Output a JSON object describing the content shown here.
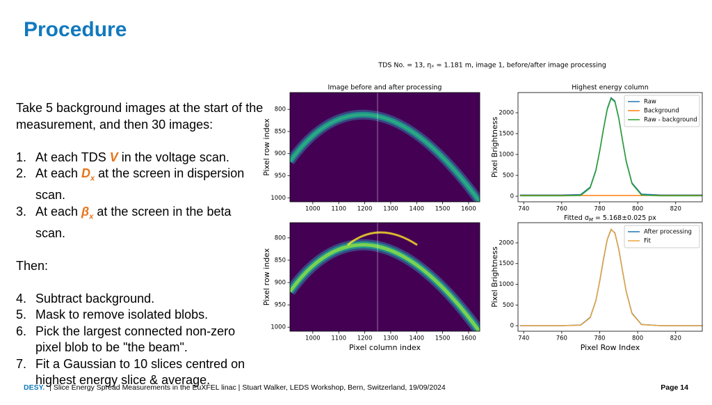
{
  "header": {
    "title": "Procedure"
  },
  "body": {
    "intro": "Take 5 background images at the start of the measurement, and then 30 images:",
    "steps": [
      {
        "number": "1.",
        "before": "At each TDS ",
        "symbol": "V",
        "after": " in the voltage scan."
      },
      {
        "number": "2.",
        "before": "At each ",
        "symbol": "D",
        "sub": "x",
        "after": " at the screen in dispersion scan."
      },
      {
        "number": "3.",
        "before": "At each ",
        "symbol": "β",
        "sub": "x",
        "after": " at the screen in the beta scan."
      }
    ],
    "then": "Then:",
    "steps2": [
      {
        "number": "4.",
        "text": "Subtract background."
      },
      {
        "number": "5.",
        "text": "Mask to remove isolated blobs."
      },
      {
        "number": "6.",
        "text": "Pick the largest connected non-zero pixel blob to be \"the beam\"."
      },
      {
        "number": "7.",
        "text": "Fit a Gaussian to 10 slices centred on highest energy slice & average."
      }
    ]
  },
  "figure": {
    "suptitle": "TDS No. = 13, ηₓ = 1.181 m, image 1, before/after image processing"
  },
  "chart_data": [
    {
      "type": "heatmap",
      "title": "Image before and after processing",
      "ylabel": "Pixel row index",
      "xlim": [
        912,
        1643
      ],
      "ylim": [
        1009,
        762
      ],
      "xticks": [
        1000,
        1100,
        1200,
        1300,
        1400,
        1500,
        1600
      ],
      "yticks": [
        800,
        850,
        900,
        950,
        1000
      ]
    },
    {
      "type": "line",
      "title": "Highest energy column",
      "ylabel": "Pixel Brightness",
      "xlim": [
        737,
        834
      ],
      "ylim": [
        -133,
        2483
      ],
      "xticks": [
        740,
        760,
        780,
        800,
        820
      ],
      "yticks": [
        0,
        500,
        1000,
        1500,
        2000
      ],
      "legend": "upper right",
      "x": [
        738,
        760,
        770,
        775,
        778,
        780,
        782,
        784,
        786,
        788,
        790,
        792,
        794,
        797,
        802,
        812,
        834
      ],
      "series": [
        {
          "name": "Raw",
          "color": "#1f77b4",
          "values": [
            30,
            30,
            40,
            220,
            630,
            1090,
            1620,
            2100,
            2360,
            2280,
            1890,
            1350,
            840,
            320,
            50,
            30,
            30
          ]
        },
        {
          "name": "Background",
          "color": "#ff7f0e",
          "values": [
            20,
            20,
            20,
            20,
            20,
            20,
            20,
            20,
            20,
            20,
            20,
            20,
            20,
            20,
            20,
            20,
            20
          ]
        },
        {
          "name": "Raw - background",
          "color": "#2ca02c",
          "values": [
            10,
            10,
            20,
            200,
            610,
            1070,
            1600,
            2080,
            2340,
            2260,
            1870,
            1330,
            820,
            300,
            30,
            10,
            10
          ]
        }
      ]
    },
    {
      "type": "heatmap",
      "xlabel": "Pixel column index",
      "ylabel": "Pixel row index",
      "xlim": [
        912,
        1643
      ],
      "ylim": [
        1009,
        766
      ],
      "xticks": [
        1000,
        1100,
        1200,
        1300,
        1400,
        1500,
        1600
      ],
      "yticks": [
        800,
        850,
        900,
        950,
        1000
      ]
    },
    {
      "type": "line",
      "title": {
        "prefix": "Fitted σ",
        "sub": "M",
        "suffix": " = 5.168±0.025 px"
      },
      "xlabel": "Pixel Row Index",
      "ylabel": "Pixel Brightness",
      "xlim": [
        737,
        834
      ],
      "ylim": [
        -134,
        2487
      ],
      "xticks": [
        740,
        760,
        780,
        800,
        820
      ],
      "yticks": [
        0,
        500,
        1000,
        1500,
        2000
      ],
      "legend": "upper right",
      "x": [
        738,
        760,
        770,
        775,
        778,
        780,
        782,
        784,
        786,
        788,
        790,
        792,
        794,
        797,
        802,
        812,
        834
      ],
      "series": [
        {
          "name": "After processing",
          "color": "#1f77b4",
          "values": [
            0,
            0,
            15,
            200,
            610,
            1070,
            1600,
            2080,
            2320,
            2240,
            1860,
            1330,
            820,
            300,
            30,
            0,
            0
          ]
        },
        {
          "name": "Fit",
          "color": "#e8a33d",
          "values": [
            0,
            0,
            10,
            190,
            600,
            1080,
            1620,
            2090,
            2330,
            2230,
            1850,
            1320,
            810,
            290,
            25,
            0,
            0
          ]
        }
      ]
    }
  ],
  "footer": {
    "brand": "DESY.",
    "text": "| Slice Energy Spread Measurements in the EuXFEL linac | Stuart Walker, LEDS Workshop, Bern, Switzerland, 19/09/2024",
    "page": "Page 14"
  }
}
